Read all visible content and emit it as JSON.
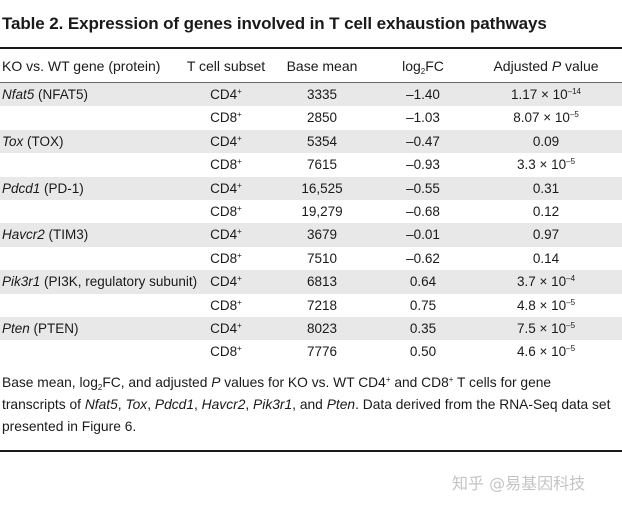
{
  "title": "Table 2. Expression of genes involved in T cell exhaustion pathways",
  "headers": {
    "gene": "KO vs. WT gene (protein)",
    "subset": "T cell subset",
    "mean": "Base mean",
    "fc_pre": "log",
    "fc_sub": "2",
    "fc_post": "FC",
    "p_pre": "Adjusted ",
    "p_it": "P",
    "p_post": " value"
  },
  "rows": [
    {
      "gene": "Nfat5",
      "protein": " (NFAT5)",
      "subset": "CD4",
      "sup": "+",
      "mean": "3335",
      "fc": "–1.40",
      "p": "1.17 × 10",
      "pexp": "–14",
      "shade": true
    },
    {
      "gene": "",
      "protein": "",
      "subset": "CD8",
      "sup": "+",
      "mean": "2850",
      "fc": "–1.03",
      "p": "8.07 × 10",
      "pexp": "–5",
      "shade": false
    },
    {
      "gene": "Tox",
      "protein": " (TOX)",
      "subset": "CD4",
      "sup": "+",
      "mean": "5354",
      "fc": "–0.47",
      "p": "0.09",
      "pexp": "",
      "shade": true
    },
    {
      "gene": "",
      "protein": "",
      "subset": "CD8",
      "sup": "+",
      "mean": "7615",
      "fc": "–0.93",
      "p": "3.3 × 10",
      "pexp": "–5",
      "shade": false
    },
    {
      "gene": "Pdcd1",
      "protein": " (PD-1)",
      "subset": "CD4",
      "sup": "+",
      "mean": "16,525",
      "fc": "–0.55",
      "p": "0.31",
      "pexp": "",
      "shade": true
    },
    {
      "gene": "",
      "protein": "",
      "subset": "CD8",
      "sup": "+",
      "mean": "19,279",
      "fc": "–0.68",
      "p": "0.12",
      "pexp": "",
      "shade": false
    },
    {
      "gene": "Havcr2",
      "protein": " (TIM3)",
      "subset": "CD4",
      "sup": "+",
      "mean": "3679",
      "fc": "–0.01",
      "p": "0.97",
      "pexp": "",
      "shade": true
    },
    {
      "gene": "",
      "protein": "",
      "subset": "CD8",
      "sup": "+",
      "mean": "7510",
      "fc": "–0.62",
      "p": "0.14",
      "pexp": "",
      "shade": false
    },
    {
      "gene": "Pik3r1",
      "protein": " (PI3K, regulatory subunit)",
      "subset": "CD4",
      "sup": "+",
      "mean": "6813",
      "fc": "0.64",
      "p": "3.7 × 10",
      "pexp": "–4",
      "shade": true
    },
    {
      "gene": "",
      "protein": "",
      "subset": "CD8",
      "sup": "+",
      "mean": "7218",
      "fc": "0.75",
      "p": "4.8 × 10",
      "pexp": "–5",
      "shade": false
    },
    {
      "gene": "Pten",
      "protein": " (PTEN)",
      "subset": "CD4",
      "sup": "+",
      "mean": "8023",
      "fc": "0.35",
      "p": "7.5 × 10",
      "pexp": "–5",
      "shade": true
    },
    {
      "gene": "",
      "protein": "",
      "subset": "CD8",
      "sup": "+",
      "mean": "7776",
      "fc": "0.50",
      "p": "4.6 × 10",
      "pexp": "–5",
      "shade": false
    }
  ],
  "footnote": [
    {
      "t": "Base mean, log",
      "s": ""
    },
    {
      "t": "2",
      "s": "sub"
    },
    {
      "t": "FC, and adjusted ",
      "s": ""
    },
    {
      "t": "P",
      "s": "i"
    },
    {
      "t": " values for KO vs. WT CD4",
      "s": ""
    },
    {
      "t": "+",
      "s": "sup"
    },
    {
      "t": " and CD8",
      "s": ""
    },
    {
      "t": "+",
      "s": "sup"
    },
    {
      "t": " T cells for gene transcripts of ",
      "s": ""
    },
    {
      "t": "Nfat5",
      "s": "i"
    },
    {
      "t": ", ",
      "s": ""
    },
    {
      "t": "Tox",
      "s": "i"
    },
    {
      "t": ", ",
      "s": ""
    },
    {
      "t": "Pdcd1",
      "s": "i"
    },
    {
      "t": ", ",
      "s": ""
    },
    {
      "t": "Havcr2",
      "s": "i"
    },
    {
      "t": ", ",
      "s": ""
    },
    {
      "t": "Pik3r1",
      "s": "i"
    },
    {
      "t": ", and ",
      "s": ""
    },
    {
      "t": "Pten",
      "s": "i"
    },
    {
      "t": ". Data derived from the RNA-Seq data set presented in Figure 6.",
      "s": ""
    }
  ],
  "watermark": "知乎 @易基因科技"
}
